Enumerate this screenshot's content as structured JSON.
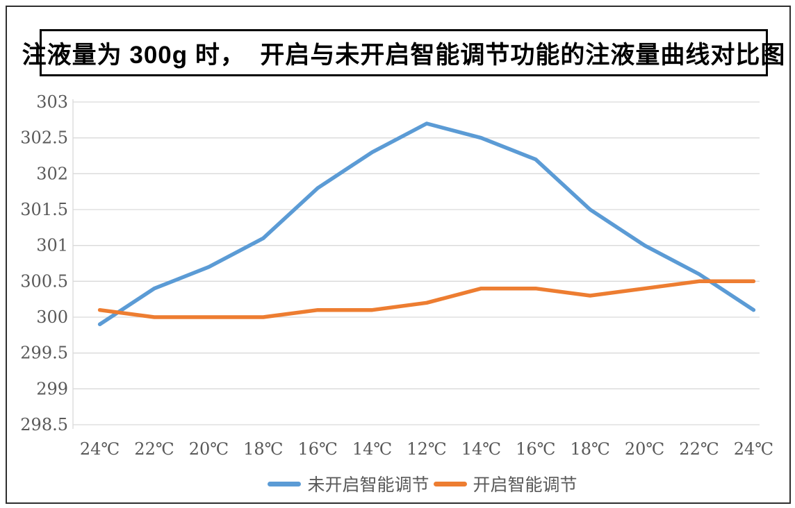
{
  "title": "注液量为 300g 时，  开启与未开启智能调节功能的注液量曲线对比图",
  "chart_data": {
    "type": "line",
    "categories": [
      "24℃",
      "22℃",
      "20℃",
      "18℃",
      "16℃",
      "14℃",
      "12℃",
      "14℃",
      "16℃",
      "18℃",
      "20℃",
      "22℃",
      "24℃"
    ],
    "series": [
      {
        "name": "未开启智能调节",
        "color": "#5B9BD5",
        "values": [
          299.9,
          300.4,
          300.7,
          301.1,
          301.8,
          302.3,
          302.7,
          302.5,
          302.2,
          301.5,
          301.0,
          300.6,
          300.1
        ]
      },
      {
        "name": "开启智能调节",
        "color": "#ED7D31",
        "values": [
          300.1,
          300.0,
          300.0,
          300.0,
          300.1,
          300.1,
          300.2,
          300.4,
          300.4,
          300.3,
          300.4,
          300.5,
          300.5
        ]
      }
    ],
    "ylim": [
      298.5,
      303
    ],
    "y_tick_step": 0.5,
    "y_tick_labels": [
      "303",
      "302.5",
      "302",
      "301.5",
      "301",
      "300.5",
      "300",
      "299.5",
      "299",
      "298.5"
    ],
    "grid": "horizontal",
    "legend_position": "bottom",
    "gridline_color": "#D9D9D9",
    "axis_text_color": "#595959"
  }
}
